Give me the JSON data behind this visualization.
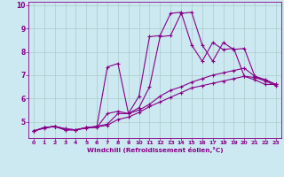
{
  "bg_color": "#cce8f0",
  "line_color": "#880088",
  "grid_color": "#aacccc",
  "xlabel": "Windchill (Refroidissement éolien,°C)",
  "ylim": [
    4.3,
    10.15
  ],
  "xlim": [
    -0.5,
    23.5
  ],
  "yticks": [
    5,
    6,
    7,
    8,
    9,
    10
  ],
  "xticks": [
    0,
    1,
    2,
    3,
    4,
    5,
    6,
    7,
    8,
    9,
    10,
    11,
    12,
    13,
    14,
    15,
    16,
    17,
    18,
    19,
    20,
    21,
    22,
    23
  ],
  "series": [
    [
      4.6,
      4.75,
      4.8,
      4.65,
      4.65,
      4.75,
      4.8,
      7.35,
      7.5,
      5.35,
      6.1,
      8.65,
      8.7,
      9.65,
      9.7,
      8.3,
      7.6,
      8.4,
      8.1,
      8.15,
      6.95,
      6.8,
      6.6,
      6.6
    ],
    [
      4.6,
      4.75,
      4.8,
      4.65,
      4.65,
      4.75,
      4.75,
      5.35,
      5.45,
      5.35,
      5.6,
      6.5,
      8.65,
      8.7,
      9.65,
      9.7,
      8.3,
      7.6,
      8.4,
      8.1,
      8.15,
      6.95,
      6.8,
      6.6
    ],
    [
      4.6,
      4.75,
      4.8,
      4.7,
      4.65,
      4.75,
      4.8,
      4.9,
      5.35,
      5.35,
      5.5,
      5.75,
      6.1,
      6.35,
      6.5,
      6.7,
      6.85,
      7.0,
      7.1,
      7.2,
      7.3,
      6.95,
      6.8,
      6.6
    ],
    [
      4.6,
      4.72,
      4.8,
      4.7,
      4.65,
      4.73,
      4.78,
      4.85,
      5.1,
      5.2,
      5.4,
      5.65,
      5.85,
      6.05,
      6.25,
      6.45,
      6.55,
      6.65,
      6.75,
      6.85,
      6.95,
      6.9,
      6.75,
      6.55
    ]
  ]
}
